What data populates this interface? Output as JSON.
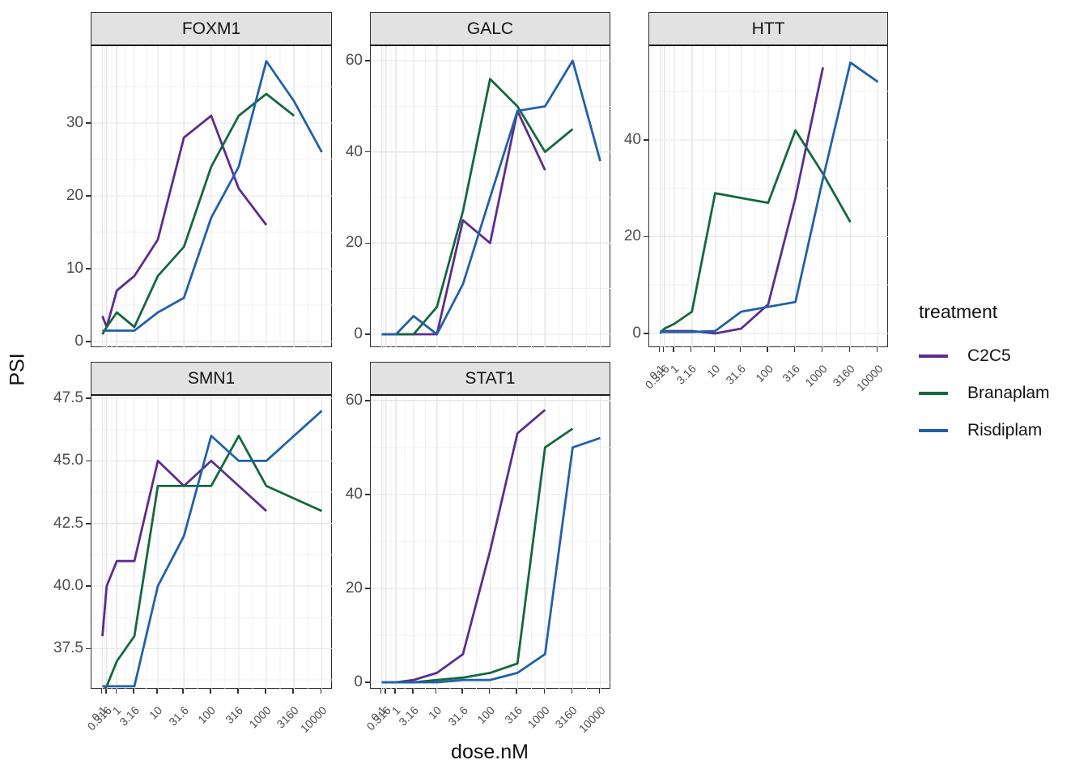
{
  "figure": {
    "y_axis_title": "PSI",
    "x_axis_title": "dose.nM"
  },
  "legend": {
    "title": "treatment",
    "entries": [
      {
        "label": "C2C5",
        "color": "#5D2C8F"
      },
      {
        "label": "Branaplam",
        "color": "#14683C"
      },
      {
        "label": "Risdiplam",
        "color": "#2161A8"
      }
    ]
  },
  "chart_data": {
    "type": "line",
    "title": "",
    "xlabel": "dose.nM",
    "ylabel": "PSI",
    "x_scale": "log-like (log10(dose+1)), shared across panels",
    "grid": "on",
    "legend_position": "right",
    "doses": [
      0.1,
      0.316,
      1,
      3.16,
      10,
      31.6,
      100,
      316,
      1000,
      3160,
      10000
    ],
    "dose_tick_labels": [
      "0.1",
      "0.316",
      "1",
      "3.16",
      "10",
      "31.6",
      "100",
      "316",
      "1000",
      "3160",
      "10000"
    ],
    "panels": [
      {
        "title": "FOXM1",
        "ylim": [
          -0.78,
          40.56
        ],
        "ybreaks": [
          0,
          10,
          20,
          30
        ],
        "ybreak_labels": [
          "0",
          "10",
          "20",
          "30"
        ],
        "show_x_axis": false,
        "series": [
          {
            "name": "C2C5",
            "values": [
              3.5,
              2,
              7,
              9,
              14,
              28,
              31,
              21,
              16
            ]
          },
          {
            "name": "Branaplam",
            "values": [
              1,
              2,
              4,
              2,
              9,
              13,
              24,
              31,
              34,
              31
            ]
          },
          {
            "name": "Risdiplam",
            "values": [
              1.5,
              1.5,
              1.5,
              1.5,
              4,
              6,
              17,
              24,
              38.5,
              33,
              26
            ]
          }
        ]
      },
      {
        "title": "GALC",
        "ylim": [
          -2.84,
          63.2
        ],
        "ybreaks": [
          0,
          20,
          40,
          60
        ],
        "ybreak_labels": [
          "0",
          "20",
          "40",
          "60"
        ],
        "show_x_axis": false,
        "series": [
          {
            "name": "C2C5",
            "values": [
              0,
              0,
              0,
              0,
              0,
              25,
              20,
              49,
              36
            ]
          },
          {
            "name": "Branaplam",
            "values": [
              0,
              0,
              0,
              0,
              6,
              27,
              56,
              50,
              40,
              45
            ]
          },
          {
            "name": "Risdiplam",
            "values": [
              0,
              0,
              0,
              4,
              0,
              11,
              30,
              49,
              50,
              60,
              38
            ]
          }
        ]
      },
      {
        "title": "HTT",
        "ylim": [
          -2.85,
          59.4
        ],
        "ybreaks": [
          0,
          20,
          40
        ],
        "ybreak_labels": [
          "0",
          "20",
          "40"
        ],
        "show_x_axis": true,
        "series": [
          {
            "name": "C2C5",
            "values": [
              0.5,
              0.5,
              0.5,
              0.5,
              0,
              1,
              6,
              28,
              55
            ]
          },
          {
            "name": "Branaplam",
            "values": [
              0,
              1,
              2,
              4.5,
              29,
              28,
              27,
              42,
              33,
              23
            ]
          },
          {
            "name": "Risdiplam",
            "values": [
              0.3,
              0.3,
              0.3,
              0.3,
              0.5,
              4.5,
              5.5,
              6.5,
              32,
              56,
              52
            ]
          }
        ]
      },
      {
        "title": "SMN1",
        "ylim": [
          35.9,
          47.6
        ],
        "ybreaks": [
          37.5,
          40,
          42.5,
          45,
          47.5
        ],
        "ybreak_labels": [
          "37.5",
          "40.0",
          "42.5",
          "45.0",
          "47.5"
        ],
        "show_x_axis": true,
        "series": [
          {
            "name": "C2C5",
            "values": [
              38,
              40,
              41,
              41,
              45,
              44,
              45,
              44,
              43
            ]
          },
          {
            "name": "Branaplam",
            "values": [
              35.8,
              36,
              37,
              38,
              44,
              44,
              44,
              46,
              44,
              43.5,
              43
            ]
          },
          {
            "name": "Risdiplam",
            "values": [
              36,
              36,
              36,
              36,
              40,
              42,
              46,
              45,
              45,
              46,
              47
            ]
          }
        ]
      },
      {
        "title": "STAT1",
        "ylim": [
          -1.38,
          61.0
        ],
        "ybreaks": [
          0,
          20,
          40,
          60
        ],
        "ybreak_labels": [
          "0",
          "20",
          "40",
          "60"
        ],
        "show_x_axis": true,
        "series": [
          {
            "name": "C2C5",
            "values": [
              0,
              0,
              0,
              0.5,
              2,
              6,
              28,
              53,
              58
            ]
          },
          {
            "name": "Branaplam",
            "values": [
              0,
              0,
              0,
              0,
              0.5,
              1,
              2,
              4,
              50,
              54
            ]
          },
          {
            "name": "Risdiplam",
            "values": [
              0,
              0,
              0,
              0,
              0,
              0.5,
              0.5,
              2,
              6,
              50,
              52
            ]
          }
        ]
      }
    ]
  },
  "style_colors": {
    "grid_major": "#E5E5E5",
    "grid_minor": "#F2F2F2",
    "panel_border": "#2e2e2e",
    "strip_background": "#E2E2E2",
    "tick_label": "#4d4d4d"
  }
}
